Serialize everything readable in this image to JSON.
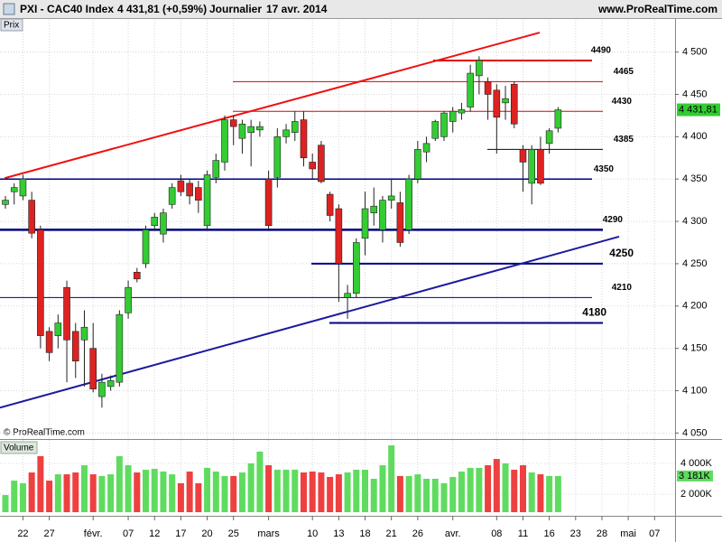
{
  "header": {
    "title": "PXI - CAC40 Index",
    "last_change": "4 431,81 (+0,59%)",
    "period": "Journalier",
    "date": "17 avr. 2014",
    "site": "www.ProRealTime.com",
    "panel_label": "Prix",
    "watermark": "© ProRealTime.com"
  },
  "chart_data": [
    {
      "type": "candlestick",
      "categories": [
        null,
        null,
        "22",
        null,
        null,
        "27",
        null,
        null,
        null,
        null,
        "févr.",
        null,
        null,
        null,
        "07",
        null,
        null,
        "12",
        null,
        null,
        "17",
        null,
        null,
        "20",
        null,
        null,
        "25",
        null,
        null,
        null,
        "mars",
        null,
        null,
        null,
        null,
        "10",
        null,
        null,
        "13",
        null,
        null,
        "18",
        null,
        null,
        "21",
        null,
        null,
        "26",
        null,
        null,
        null,
        "avr.",
        null,
        null,
        null,
        null,
        "08",
        null,
        null,
        "11",
        null,
        null,
        "16",
        null,
        null,
        "23",
        null,
        null,
        "28",
        null,
        null,
        "mai",
        null,
        null,
        "07",
        null
      ],
      "open": [
        4320,
        4335,
        4330,
        4325,
        4290,
        4170,
        4165,
        4222,
        4170,
        4160,
        4150,
        4093,
        4105,
        4110,
        4192,
        4240,
        4250,
        4295,
        4285,
        4320,
        4348,
        4345,
        4340,
        4295,
        4352,
        4370,
        4420,
        4398,
        4405,
        4408,
        4350,
        4352,
        4400,
        4405,
        4420,
        4370,
        4390,
        4332,
        4315,
        4210,
        4215,
        4280,
        4310,
        4290,
        4325,
        4322,
        4290,
        4350,
        4382,
        4398,
        4400,
        4418,
        4428,
        4435,
        4472,
        4465,
        4455,
        4440,
        4462,
        4385,
        4345,
        4385,
        4392,
        4410,
        null,
        null,
        null,
        null,
        null,
        null,
        null,
        null,
        null,
        null,
        null,
        null
      ],
      "high": [
        4330,
        4345,
        4355,
        4335,
        4295,
        4175,
        4190,
        4230,
        4180,
        4195,
        4180,
        4120,
        4118,
        4195,
        4230,
        4245,
        4295,
        4310,
        4315,
        4345,
        4355,
        4350,
        4348,
        4360,
        4380,
        4425,
        4425,
        4420,
        4420,
        4418,
        4360,
        4410,
        4415,
        4430,
        4430,
        4380,
        4395,
        4335,
        4320,
        4225,
        4280,
        4335,
        4340,
        4330,
        4350,
        4335,
        4355,
        4395,
        4400,
        4420,
        4430,
        4435,
        4440,
        4485,
        4495,
        4470,
        4462,
        4460,
        4465,
        4390,
        4390,
        4400,
        4410,
        4435,
        null,
        null,
        null,
        null,
        null,
        null,
        null,
        null,
        null,
        null,
        null,
        null
      ],
      "low": [
        4315,
        4320,
        4325,
        4280,
        4150,
        4135,
        4150,
        4110,
        4115,
        4105,
        4098,
        4080,
        4100,
        4105,
        4185,
        4228,
        4245,
        4290,
        4275,
        4315,
        4330,
        4320,
        4310,
        4290,
        4345,
        4360,
        4390,
        4380,
        4365,
        4400,
        4290,
        4340,
        4392,
        4395,
        4365,
        4350,
        4345,
        4300,
        4205,
        4185,
        4210,
        4260,
        4295,
        4275,
        4315,
        4270,
        4285,
        4345,
        4370,
        4395,
        4395,
        4405,
        4420,
        4430,
        4450,
        4420,
        4380,
        4420,
        4410,
        4335,
        4320,
        4343,
        4380,
        4405,
        null,
        null,
        null,
        null,
        null,
        null,
        null,
        null,
        null,
        null,
        null,
        null
      ],
      "close": [
        4325,
        4340,
        4350,
        4286,
        4165,
        4145,
        4180,
        4160,
        4135,
        4175,
        4102,
        4110,
        4112,
        4190,
        4222,
        4232,
        4290,
        4305,
        4310,
        4340,
        4335,
        4330,
        4325,
        4355,
        4372,
        4420,
        4412,
        4415,
        4412,
        4412,
        4295,
        4400,
        4408,
        4418,
        4375,
        4362,
        4347,
        4307,
        4250,
        4215,
        4275,
        4315,
        4318,
        4325,
        4330,
        4275,
        4350,
        4385,
        4392,
        4418,
        4428,
        4430,
        4432,
        4475,
        4490,
        4450,
        4423,
        4445,
        4415,
        4370,
        4385,
        4345,
        4407,
        4431.81,
        null,
        null,
        null,
        null,
        null,
        null,
        null,
        null,
        null,
        null,
        null,
        null
      ],
      "last_price_label": "4 431,81",
      "up_color": "#33cc33",
      "down_color": "#dd2222",
      "ylim": [
        4044,
        4538
      ],
      "yticks": [
        {
          "value": 4050,
          "label": "4 050"
        },
        {
          "value": 4100,
          "label": "4 100"
        },
        {
          "value": 4150,
          "label": "4 150"
        },
        {
          "value": 4200,
          "label": "4 200"
        },
        {
          "value": 4250,
          "label": "4 250"
        },
        {
          "value": 4300,
          "label": "4 300"
        },
        {
          "value": 4350,
          "label": "4 350"
        },
        {
          "value": 4400,
          "label": "4 400"
        },
        {
          "value": 4450,
          "label": "4 450"
        },
        {
          "value": 4500,
          "label": "4 500"
        }
      ],
      "grid": true,
      "levels": [
        {
          "value": 4490,
          "color": "#e00000",
          "width": 2
        },
        {
          "value": 4465,
          "color": "#e00000",
          "width": 1
        },
        {
          "value": 4430,
          "color": "#e00000",
          "width": 1
        },
        {
          "value": 4385,
          "color": "#000033",
          "width": 1
        },
        {
          "value": 4350,
          "color": "#000080",
          "width": 1.5
        },
        {
          "value": 4290,
          "color": "#000080",
          "width": 2.5
        },
        {
          "value": 4250,
          "color": "#000080",
          "width": 2
        },
        {
          "value": 4210,
          "color": "#000080",
          "width": 1
        },
        {
          "value": 4180,
          "color": "#000080",
          "width": 2
        }
      ],
      "trendlines": [
        {
          "color": "#ee1111",
          "values": [
            4351,
            4523
          ]
        },
        {
          "color": "#1a1aa0",
          "values": [
            4080,
            4282
          ]
        }
      ]
    },
    {
      "type": "bar",
      "title": "Volume",
      "values": [
        1940,
        2880,
        2710,
        3410,
        4470,
        2880,
        3290,
        3290,
        3410,
        3880,
        3290,
        3180,
        3290,
        4470,
        3880,
        3410,
        3590,
        3650,
        3470,
        3290,
        2710,
        3470,
        2710,
        3710,
        3470,
        3180,
        3180,
        3410,
        4000,
        4770,
        3880,
        3590,
        3590,
        3590,
        3410,
        3470,
        3410,
        3120,
        3290,
        3410,
        3590,
        3590,
        3000,
        3880,
        5180,
        3180,
        3180,
        3290,
        3000,
        3000,
        2710,
        3120,
        3470,
        3710,
        3710,
        3880,
        4290,
        4000,
        3590,
        3880,
        3410,
        3290,
        3180,
        3181,
        null,
        null,
        null,
        null,
        null,
        null,
        null,
        null,
        null,
        null,
        null,
        null
      ],
      "last_value_label": "3 181K",
      "up_color": "#5fdc5f",
      "down_color": "#ee4040",
      "ylim": [
        824,
        5470
      ],
      "yticks": [
        {
          "value": 4000,
          "label": "4 000K"
        },
        {
          "value": 2000,
          "label": "2 000K"
        }
      ]
    }
  ]
}
